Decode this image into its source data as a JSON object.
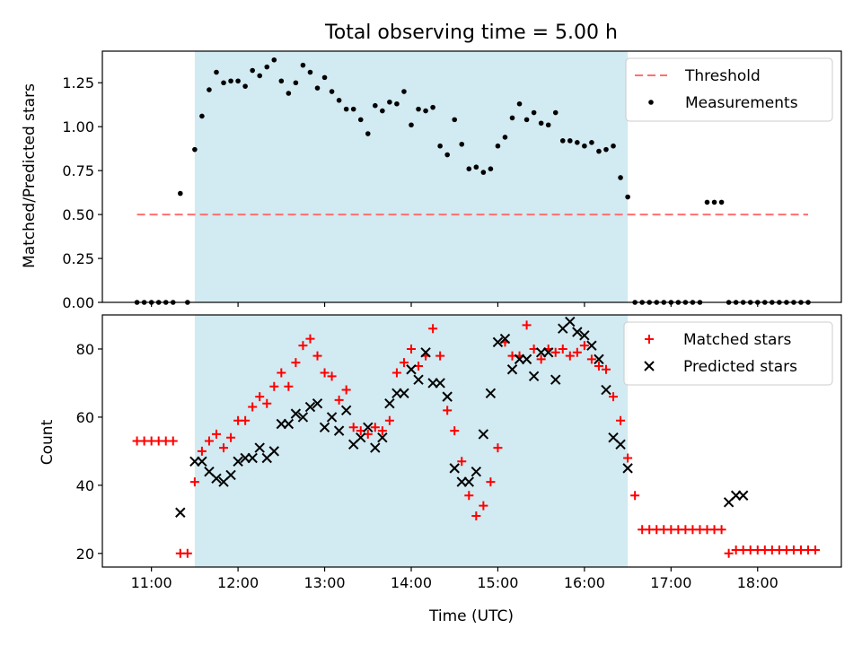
{
  "figure": {
    "title": "Total observing time = 5.00 h"
  },
  "colors": {
    "observing_window": "#add8e6",
    "threshold": "#ff6f6f",
    "measurements": "#000000",
    "matched": "#ff0000",
    "predicted": "#000000"
  },
  "chart_data": [
    {
      "type": "scatter",
      "panel": "top",
      "title": "Total observing time = 5.00 h",
      "xlabel": "",
      "ylabel": "Matched/Predicted stars",
      "xlim": [
        "10:26",
        "18:58"
      ],
      "ylim": [
        0,
        1.43
      ],
      "x_ticks": [
        "11:00",
        "12:00",
        "13:00",
        "14:00",
        "15:00",
        "16:00",
        "17:00",
        "18:00"
      ],
      "y_ticks": [
        "0.00",
        "0.25",
        "0.50",
        "0.75",
        "1.00",
        "1.25"
      ],
      "legend": {
        "placement": "top-right",
        "entries": [
          "Threshold",
          "Measurements"
        ]
      },
      "shaded_span": [
        "11:30",
        "16:30"
      ],
      "threshold": {
        "name": "Threshold",
        "value": 0.5,
        "x_range": [
          "10:50",
          "18:35"
        ],
        "style": "dashed"
      },
      "series": [
        {
          "name": "Measurements",
          "marker": "dot",
          "points": [
            [
              "10:50",
              0
            ],
            [
              "10:55",
              0
            ],
            [
              "11:00",
              0
            ],
            [
              "11:05",
              0
            ],
            [
              "11:10",
              0
            ],
            [
              "11:15",
              0
            ],
            [
              "11:20",
              0.62
            ],
            [
              "11:25",
              0
            ],
            [
              "11:30",
              0.87
            ],
            [
              "11:35",
              1.06
            ],
            [
              "11:40",
              1.21
            ],
            [
              "11:45",
              1.31
            ],
            [
              "11:50",
              1.25
            ],
            [
              "11:55",
              1.26
            ],
            [
              "12:00",
              1.26
            ],
            [
              "12:05",
              1.23
            ],
            [
              "12:10",
              1.32
            ],
            [
              "12:15",
              1.29
            ],
            [
              "12:20",
              1.34
            ],
            [
              "12:25",
              1.38
            ],
            [
              "12:30",
              1.26
            ],
            [
              "12:35",
              1.19
            ],
            [
              "12:40",
              1.25
            ],
            [
              "12:45",
              1.35
            ],
            [
              "12:50",
              1.31
            ],
            [
              "12:55",
              1.22
            ],
            [
              "13:00",
              1.28
            ],
            [
              "13:05",
              1.2
            ],
            [
              "13:10",
              1.15
            ],
            [
              "13:15",
              1.1
            ],
            [
              "13:20",
              1.1
            ],
            [
              "13:25",
              1.04
            ],
            [
              "13:30",
              0.96
            ],
            [
              "13:35",
              1.12
            ],
            [
              "13:40",
              1.09
            ],
            [
              "13:45",
              1.14
            ],
            [
              "13:50",
              1.13
            ],
            [
              "13:55",
              1.2
            ],
            [
              "14:00",
              1.01
            ],
            [
              "14:05",
              1.1
            ],
            [
              "14:10",
              1.09
            ],
            [
              "14:15",
              1.11
            ],
            [
              "14:20",
              0.89
            ],
            [
              "14:25",
              0.84
            ],
            [
              "14:30",
              1.04
            ],
            [
              "14:35",
              0.9
            ],
            [
              "14:40",
              0.76
            ],
            [
              "14:45",
              0.77
            ],
            [
              "14:50",
              0.74
            ],
            [
              "14:55",
              0.76
            ],
            [
              "15:00",
              0.89
            ],
            [
              "15:05",
              0.94
            ],
            [
              "15:10",
              1.05
            ],
            [
              "15:15",
              1.13
            ],
            [
              "15:20",
              1.04
            ],
            [
              "15:25",
              1.08
            ],
            [
              "15:30",
              1.02
            ],
            [
              "15:35",
              1.01
            ],
            [
              "15:40",
              1.08
            ],
            [
              "15:45",
              0.92
            ],
            [
              "15:50",
              0.92
            ],
            [
              "15:55",
              0.91
            ],
            [
              "16:00",
              0.89
            ],
            [
              "16:05",
              0.91
            ],
            [
              "16:10",
              0.86
            ],
            [
              "16:15",
              0.87
            ],
            [
              "16:20",
              0.89
            ],
            [
              "16:25",
              0.71
            ],
            [
              "16:30",
              0.6
            ],
            [
              "16:35",
              0
            ],
            [
              "16:40",
              0
            ],
            [
              "16:45",
              0
            ],
            [
              "16:50",
              0
            ],
            [
              "16:55",
              0
            ],
            [
              "17:00",
              0
            ],
            [
              "17:05",
              0
            ],
            [
              "17:10",
              0
            ],
            [
              "17:15",
              0
            ],
            [
              "17:20",
              0
            ],
            [
              "17:25",
              0.57
            ],
            [
              "17:30",
              0.57
            ],
            [
              "17:35",
              0.57
            ],
            [
              "17:40",
              0
            ],
            [
              "17:45",
              0
            ],
            [
              "17:50",
              0
            ],
            [
              "17:55",
              0
            ],
            [
              "18:00",
              0
            ],
            [
              "18:05",
              0
            ],
            [
              "18:10",
              0
            ],
            [
              "18:15",
              0
            ],
            [
              "18:20",
              0
            ],
            [
              "18:25",
              0
            ],
            [
              "18:30",
              0
            ],
            [
              "18:35",
              0
            ]
          ]
        }
      ]
    },
    {
      "type": "scatter",
      "panel": "bottom",
      "xlabel": "Time (UTC)",
      "ylabel": "Count",
      "xlim": [
        "10:26",
        "18:58"
      ],
      "ylim": [
        16,
        90
      ],
      "x_ticks": [
        "11:00",
        "12:00",
        "13:00",
        "14:00",
        "15:00",
        "16:00",
        "17:00",
        "18:00"
      ],
      "y_ticks": [
        "20",
        "40",
        "60",
        "80"
      ],
      "legend": {
        "placement": "top-right",
        "entries": [
          "Matched stars",
          "Predicted stars"
        ]
      },
      "shaded_span": [
        "11:30",
        "16:30"
      ],
      "series": [
        {
          "name": "Matched stars",
          "marker": "plus",
          "points": [
            [
              "10:50",
              53
            ],
            [
              "10:55",
              53
            ],
            [
              "11:00",
              53
            ],
            [
              "11:05",
              53
            ],
            [
              "11:10",
              53
            ],
            [
              "11:15",
              53
            ],
            [
              "11:20",
              20
            ],
            [
              "11:25",
              20
            ],
            [
              "11:30",
              41
            ],
            [
              "11:35",
              50
            ],
            [
              "11:40",
              53
            ],
            [
              "11:45",
              55
            ],
            [
              "11:50",
              51
            ],
            [
              "11:55",
              54
            ],
            [
              "12:00",
              59
            ],
            [
              "12:05",
              59
            ],
            [
              "12:10",
              63
            ],
            [
              "12:15",
              66
            ],
            [
              "12:20",
              64
            ],
            [
              "12:25",
              69
            ],
            [
              "12:30",
              73
            ],
            [
              "12:35",
              69
            ],
            [
              "12:40",
              76
            ],
            [
              "12:45",
              81
            ],
            [
              "12:50",
              83
            ],
            [
              "12:55",
              78
            ],
            [
              "13:00",
              73
            ],
            [
              "13:05",
              72
            ],
            [
              "13:10",
              65
            ],
            [
              "13:15",
              68
            ],
            [
              "13:20",
              57
            ],
            [
              "13:25",
              56
            ],
            [
              "13:30",
              55
            ],
            [
              "13:35",
              57
            ],
            [
              "13:40",
              56
            ],
            [
              "13:45",
              59
            ],
            [
              "13:50",
              73
            ],
            [
              "13:55",
              76
            ],
            [
              "14:00",
              80
            ],
            [
              "14:05",
              75
            ],
            [
              "14:10",
              78
            ],
            [
              "14:15",
              86
            ],
            [
              "14:20",
              78
            ],
            [
              "14:25",
              62
            ],
            [
              "14:30",
              56
            ],
            [
              "14:35",
              47
            ],
            [
              "14:40",
              37
            ],
            [
              "14:45",
              31
            ],
            [
              "14:50",
              34
            ],
            [
              "14:55",
              41
            ],
            [
              "15:00",
              51
            ],
            [
              "15:05",
              82
            ],
            [
              "15:10",
              78
            ],
            [
              "15:15",
              78
            ],
            [
              "15:20",
              87
            ],
            [
              "15:25",
              80
            ],
            [
              "15:30",
              77
            ],
            [
              "15:35",
              80
            ],
            [
              "15:40",
              79
            ],
            [
              "15:45",
              80
            ],
            [
              "15:50",
              78
            ],
            [
              "15:55",
              79
            ],
            [
              "16:00",
              81
            ],
            [
              "16:05",
              77
            ],
            [
              "16:10",
              75
            ],
            [
              "16:15",
              74
            ],
            [
              "16:20",
              66
            ],
            [
              "16:25",
              59
            ],
            [
              "16:30",
              48
            ],
            [
              "16:35",
              37
            ],
            [
              "16:40",
              27
            ],
            [
              "16:45",
              27
            ],
            [
              "16:50",
              27
            ],
            [
              "16:55",
              27
            ],
            [
              "17:00",
              27
            ],
            [
              "17:05",
              27
            ],
            [
              "17:10",
              27
            ],
            [
              "17:15",
              27
            ],
            [
              "17:20",
              27
            ],
            [
              "17:25",
              27
            ],
            [
              "17:30",
              27
            ],
            [
              "17:35",
              27
            ],
            [
              "17:40",
              20
            ],
            [
              "17:45",
              21
            ],
            [
              "17:50",
              21
            ],
            [
              "17:55",
              21
            ],
            [
              "18:00",
              21
            ],
            [
              "18:05",
              21
            ],
            [
              "18:10",
              21
            ],
            [
              "18:15",
              21
            ],
            [
              "18:20",
              21
            ],
            [
              "18:25",
              21
            ],
            [
              "18:30",
              21
            ],
            [
              "18:35",
              21
            ],
            [
              "18:40",
              21
            ]
          ]
        },
        {
          "name": "Predicted stars",
          "marker": "x",
          "points": [
            [
              "11:20",
              32
            ],
            [
              "11:30",
              47
            ],
            [
              "11:35",
              47
            ],
            [
              "11:40",
              44
            ],
            [
              "11:45",
              42
            ],
            [
              "11:50",
              41
            ],
            [
              "11:55",
              43
            ],
            [
              "12:00",
              47
            ],
            [
              "12:05",
              48
            ],
            [
              "12:10",
              48
            ],
            [
              "12:15",
              51
            ],
            [
              "12:20",
              48
            ],
            [
              "12:25",
              50
            ],
            [
              "12:30",
              58
            ],
            [
              "12:35",
              58
            ],
            [
              "12:40",
              61
            ],
            [
              "12:45",
              60
            ],
            [
              "12:50",
              63
            ],
            [
              "12:55",
              64
            ],
            [
              "13:00",
              57
            ],
            [
              "13:05",
              60
            ],
            [
              "13:10",
              56
            ],
            [
              "13:15",
              62
            ],
            [
              "13:20",
              52
            ],
            [
              "13:25",
              54
            ],
            [
              "13:30",
              57
            ],
            [
              "13:35",
              51
            ],
            [
              "13:40",
              54
            ],
            [
              "13:45",
              64
            ],
            [
              "13:50",
              67
            ],
            [
              "13:55",
              67
            ],
            [
              "14:00",
              74
            ],
            [
              "14:05",
              71
            ],
            [
              "14:10",
              79
            ],
            [
              "14:15",
              70
            ],
            [
              "14:20",
              70
            ],
            [
              "14:25",
              66
            ],
            [
              "14:30",
              45
            ],
            [
              "14:35",
              41
            ],
            [
              "14:40",
              41
            ],
            [
              "14:45",
              44
            ],
            [
              "14:50",
              55
            ],
            [
              "14:55",
              67
            ],
            [
              "15:00",
              82
            ],
            [
              "15:05",
              83
            ],
            [
              "15:10",
              74
            ],
            [
              "15:15",
              77
            ],
            [
              "15:20",
              77
            ],
            [
              "15:25",
              72
            ],
            [
              "15:30",
              79
            ],
            [
              "15:35",
              79
            ],
            [
              "15:40",
              71
            ],
            [
              "15:45",
              86
            ],
            [
              "15:50",
              88
            ],
            [
              "15:55",
              85
            ],
            [
              "16:00",
              84
            ],
            [
              "16:05",
              81
            ],
            [
              "16:10",
              77
            ],
            [
              "16:15",
              68
            ],
            [
              "16:20",
              54
            ],
            [
              "16:25",
              52
            ],
            [
              "16:30",
              45
            ],
            [
              "17:40",
              35
            ],
            [
              "17:45",
              37
            ],
            [
              "17:50",
              37
            ]
          ]
        }
      ]
    }
  ]
}
